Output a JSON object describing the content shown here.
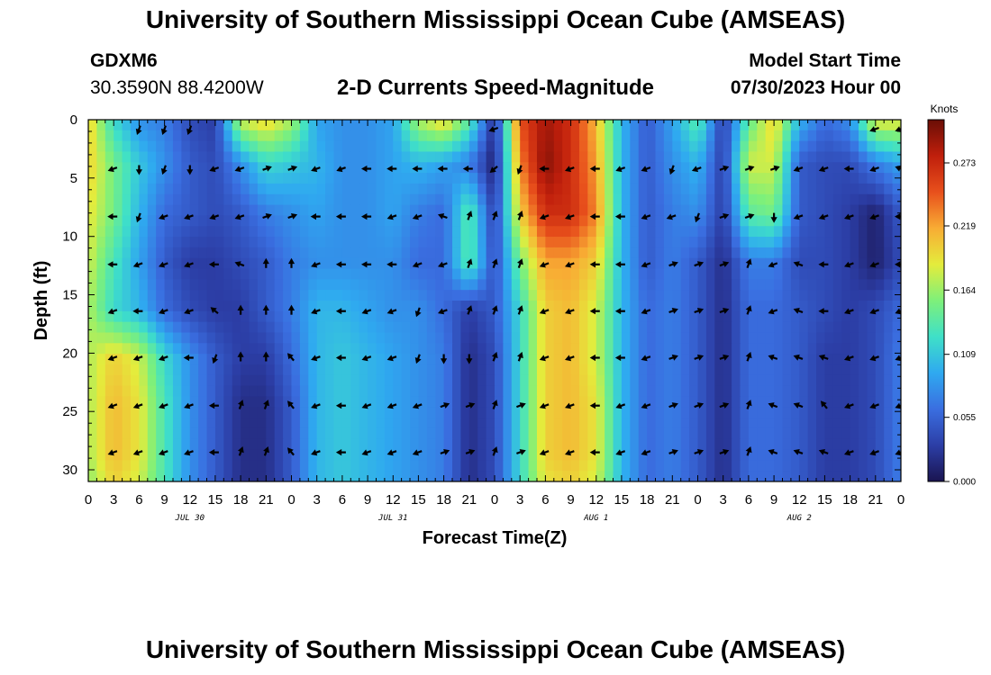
{
  "header": {
    "title": "University of Southern Mississippi Ocean Cube (AMSEAS)",
    "station_id": "GDXM6",
    "station_coords": "30.3590N  88.4200W",
    "subtitle": "2-D Currents Speed-Magnitude",
    "model_label": "Model Start Time",
    "model_date": "07/30/2023 Hour 00"
  },
  "footer": {
    "title": "University of Southern Mississippi Ocean Cube (AMSEAS)"
  },
  "chart_data": {
    "type": "heatmap",
    "title": "2-D Currents Speed-Magnitude",
    "xlabel": "Forecast Time(Z)",
    "ylabel": "Depth (ft)",
    "xlim": [
      0,
      96
    ],
    "ylim": [
      0,
      31
    ],
    "y_inverted": true,
    "x_tick_step_hours": 3,
    "x_tick_labels": [
      "0",
      "3",
      "6",
      "9",
      "12",
      "15",
      "18",
      "21",
      "0",
      "3",
      "6",
      "9",
      "12",
      "15",
      "18",
      "21",
      "0",
      "3",
      "6",
      "9",
      "12",
      "15",
      "18",
      "21",
      "0",
      "3",
      "6",
      "9",
      "12",
      "15",
      "18",
      "21",
      "0"
    ],
    "y_ticks": [
      0,
      5,
      10,
      15,
      20,
      25,
      30
    ],
    "date_labels": [
      {
        "hour": 12,
        "text": "JUL 30"
      },
      {
        "hour": 36,
        "text": "JUL 31"
      },
      {
        "hour": 60,
        "text": "AUG 1"
      },
      {
        "hour": 84,
        "text": "AUG 2"
      }
    ],
    "colorbar": {
      "unit": "Knots",
      "ticks": [
        0.0,
        0.055,
        0.109,
        0.164,
        0.219,
        0.273
      ],
      "tick_labels": [
        "0.000",
        "0.055",
        "0.109",
        "0.164",
        "0.219",
        "0.273"
      ],
      "vmin": 0.0,
      "vmax": 0.31,
      "colormap": [
        "#1a1450",
        "#2c3ea6",
        "#3a6ee0",
        "#2fa9f0",
        "#3fe0c8",
        "#7ef07a",
        "#e4ec3c",
        "#f8ac34",
        "#e8501c",
        "#c01f0c",
        "#6a0e06"
      ]
    },
    "depths": [
      0,
      3.8,
      8.0,
      12.2,
      16.3,
      20.4,
      24.4,
      28.5,
      31
    ],
    "times": [
      0,
      3,
      6,
      9,
      12,
      15,
      18,
      21,
      24,
      27,
      30,
      33,
      36,
      39,
      42,
      45,
      48,
      51,
      54,
      57,
      60,
      63,
      66,
      69,
      72,
      75,
      78,
      81,
      84,
      87,
      90,
      93,
      96
    ],
    "speed_knots": [
      [
        0.2,
        0.12,
        0.08,
        0.07,
        0.04,
        0.03,
        0.18,
        0.2,
        0.17,
        0.09,
        0.08,
        0.08,
        0.09,
        0.17,
        0.2,
        0.14,
        0.02,
        0.25,
        0.29,
        0.27,
        0.21,
        0.1,
        0.05,
        0.09,
        0.14,
        0.03,
        0.14,
        0.2,
        0.1,
        0.06,
        0.08,
        0.19,
        0.19
      ],
      [
        0.2,
        0.15,
        0.11,
        0.08,
        0.05,
        0.04,
        0.08,
        0.12,
        0.11,
        0.1,
        0.08,
        0.08,
        0.09,
        0.1,
        0.09,
        0.07,
        0.01,
        0.23,
        0.3,
        0.27,
        0.22,
        0.1,
        0.05,
        0.08,
        0.1,
        0.03,
        0.18,
        0.18,
        0.05,
        0.04,
        0.04,
        0.07,
        0.09
      ],
      [
        0.19,
        0.15,
        0.1,
        0.06,
        0.05,
        0.04,
        0.05,
        0.07,
        0.08,
        0.09,
        0.08,
        0.08,
        0.09,
        0.07,
        0.06,
        0.14,
        0.03,
        0.2,
        0.27,
        0.27,
        0.23,
        0.1,
        0.05,
        0.07,
        0.08,
        0.03,
        0.14,
        0.15,
        0.05,
        0.04,
        0.03,
        0.01,
        0.05
      ],
      [
        0.18,
        0.13,
        0.09,
        0.05,
        0.03,
        0.03,
        0.04,
        0.05,
        0.07,
        0.08,
        0.08,
        0.08,
        0.08,
        0.06,
        0.06,
        0.14,
        0.04,
        0.15,
        0.22,
        0.22,
        0.2,
        0.1,
        0.05,
        0.07,
        0.05,
        0.02,
        0.07,
        0.07,
        0.04,
        0.04,
        0.03,
        0.01,
        0.04
      ],
      [
        0.17,
        0.12,
        0.1,
        0.06,
        0.04,
        0.03,
        0.03,
        0.05,
        0.07,
        0.1,
        0.1,
        0.09,
        0.08,
        0.08,
        0.06,
        0.03,
        0.05,
        0.12,
        0.2,
        0.21,
        0.18,
        0.1,
        0.06,
        0.07,
        0.05,
        0.02,
        0.06,
        0.06,
        0.05,
        0.04,
        0.03,
        0.04,
        0.06
      ],
      [
        0.17,
        0.2,
        0.18,
        0.12,
        0.08,
        0.05,
        0.03,
        0.03,
        0.06,
        0.1,
        0.11,
        0.1,
        0.09,
        0.08,
        0.07,
        0.02,
        0.04,
        0.12,
        0.2,
        0.21,
        0.18,
        0.1,
        0.06,
        0.07,
        0.05,
        0.02,
        0.06,
        0.06,
        0.05,
        0.03,
        0.03,
        0.04,
        0.07
      ],
      [
        0.17,
        0.21,
        0.19,
        0.13,
        0.08,
        0.05,
        0.02,
        0.02,
        0.05,
        0.1,
        0.11,
        0.1,
        0.09,
        0.08,
        0.07,
        0.02,
        0.04,
        0.12,
        0.2,
        0.21,
        0.19,
        0.1,
        0.06,
        0.07,
        0.05,
        0.02,
        0.06,
        0.06,
        0.05,
        0.03,
        0.03,
        0.04,
        0.07
      ],
      [
        0.17,
        0.21,
        0.19,
        0.13,
        0.08,
        0.05,
        0.02,
        0.02,
        0.05,
        0.1,
        0.11,
        0.1,
        0.09,
        0.08,
        0.07,
        0.02,
        0.04,
        0.12,
        0.2,
        0.21,
        0.19,
        0.1,
        0.06,
        0.07,
        0.05,
        0.02,
        0.06,
        0.06,
        0.05,
        0.03,
        0.03,
        0.04,
        0.07
      ],
      [
        0.16,
        0.2,
        0.18,
        0.13,
        0.08,
        0.05,
        0.02,
        0.02,
        0.05,
        0.1,
        0.11,
        0.1,
        0.09,
        0.08,
        0.07,
        0.02,
        0.04,
        0.12,
        0.19,
        0.2,
        0.18,
        0.1,
        0.06,
        0.07,
        0.05,
        0.02,
        0.06,
        0.06,
        0.05,
        0.03,
        0.03,
        0.04,
        0.07
      ]
    ],
    "vector_depths": [
      0.8,
      4.2,
      8.3,
      12.4,
      16.4,
      20.4,
      24.5,
      28.5
    ],
    "vector_direction_deg": [
      [
        null,
        200,
        200,
        200,
        null,
        null,
        null,
        null,
        null,
        null,
        null,
        null,
        null,
        null,
        null,
        250,
        null,
        null,
        null,
        null,
        null,
        null,
        null,
        null,
        null,
        null,
        null,
        null,
        null,
        null,
        250,
        250
      ],
      [
        250,
        180,
        200,
        180,
        250,
        250,
        70,
        70,
        250,
        250,
        270,
        270,
        270,
        270,
        270,
        230,
        200,
        270,
        250,
        270,
        250,
        250,
        200,
        250,
        70,
        70,
        70,
        250,
        250,
        270,
        250,
        290
      ],
      [
        270,
        200,
        250,
        250,
        250,
        250,
        70,
        70,
        270,
        270,
        270,
        250,
        250,
        290,
        20,
        20,
        20,
        250,
        250,
        270,
        270,
        250,
        250,
        200,
        70,
        70,
        180,
        250,
        250,
        250,
        250,
        270
      ],
      [
        270,
        250,
        250,
        250,
        270,
        290,
        0,
        0,
        250,
        270,
        270,
        270,
        250,
        250,
        20,
        20,
        20,
        250,
        250,
        270,
        270,
        250,
        70,
        70,
        70,
        20,
        250,
        290,
        270,
        250,
        250,
        270
      ],
      [
        250,
        270,
        250,
        250,
        310,
        0,
        0,
        0,
        250,
        270,
        250,
        250,
        200,
        250,
        20,
        20,
        20,
        250,
        250,
        270,
        270,
        250,
        70,
        70,
        70,
        20,
        250,
        290,
        270,
        250,
        250,
        250
      ],
      [
        250,
        250,
        250,
        270,
        200,
        0,
        0,
        320,
        250,
        270,
        250,
        250,
        200,
        180,
        180,
        20,
        20,
        250,
        250,
        270,
        270,
        250,
        70,
        70,
        70,
        20,
        290,
        290,
        290,
        250,
        250,
        250
      ],
      [
        250,
        250,
        250,
        250,
        270,
        20,
        20,
        320,
        250,
        270,
        250,
        250,
        250,
        70,
        70,
        20,
        70,
        250,
        250,
        270,
        250,
        250,
        70,
        70,
        70,
        20,
        290,
        290,
        320,
        250,
        250,
        250
      ],
      [
        250,
        250,
        250,
        250,
        270,
        20,
        20,
        320,
        250,
        270,
        250,
        250,
        250,
        70,
        70,
        20,
        70,
        250,
        250,
        270,
        250,
        250,
        70,
        70,
        70,
        20,
        290,
        290,
        290,
        250,
        250,
        250
      ]
    ]
  }
}
